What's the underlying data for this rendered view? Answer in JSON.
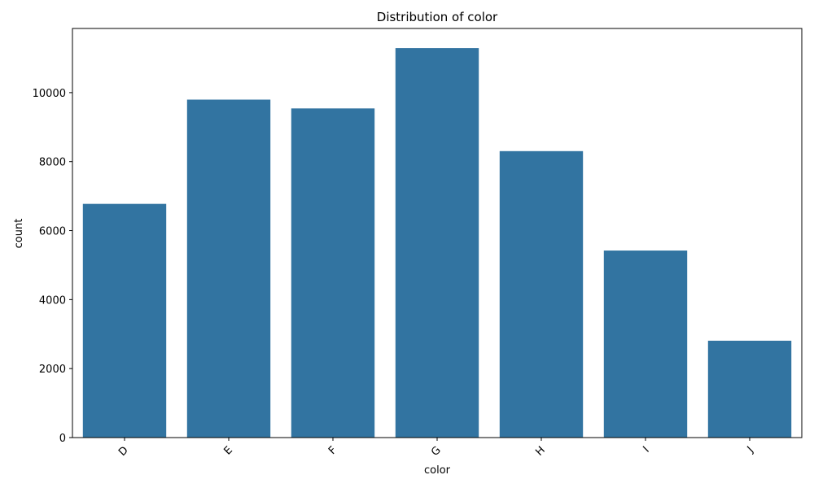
{
  "chart_data": {
    "type": "bar",
    "title": "Distribution of color",
    "xlabel": "color",
    "ylabel": "count",
    "categories": [
      "D",
      "E",
      "F",
      "G",
      "H",
      "I",
      "J"
    ],
    "values": [
      6775,
      9797,
      9542,
      11292,
      8304,
      5422,
      2808
    ],
    "ylim": [
      0,
      11860
    ],
    "yticks": [
      0,
      2000,
      4000,
      6000,
      8000,
      10000
    ],
    "ytick_labels": [
      "0",
      "2000",
      "4000",
      "6000",
      "8000",
      "10000"
    ],
    "bar_color": "#3274a1",
    "grid": false,
    "x_tick_rotation": 45
  }
}
